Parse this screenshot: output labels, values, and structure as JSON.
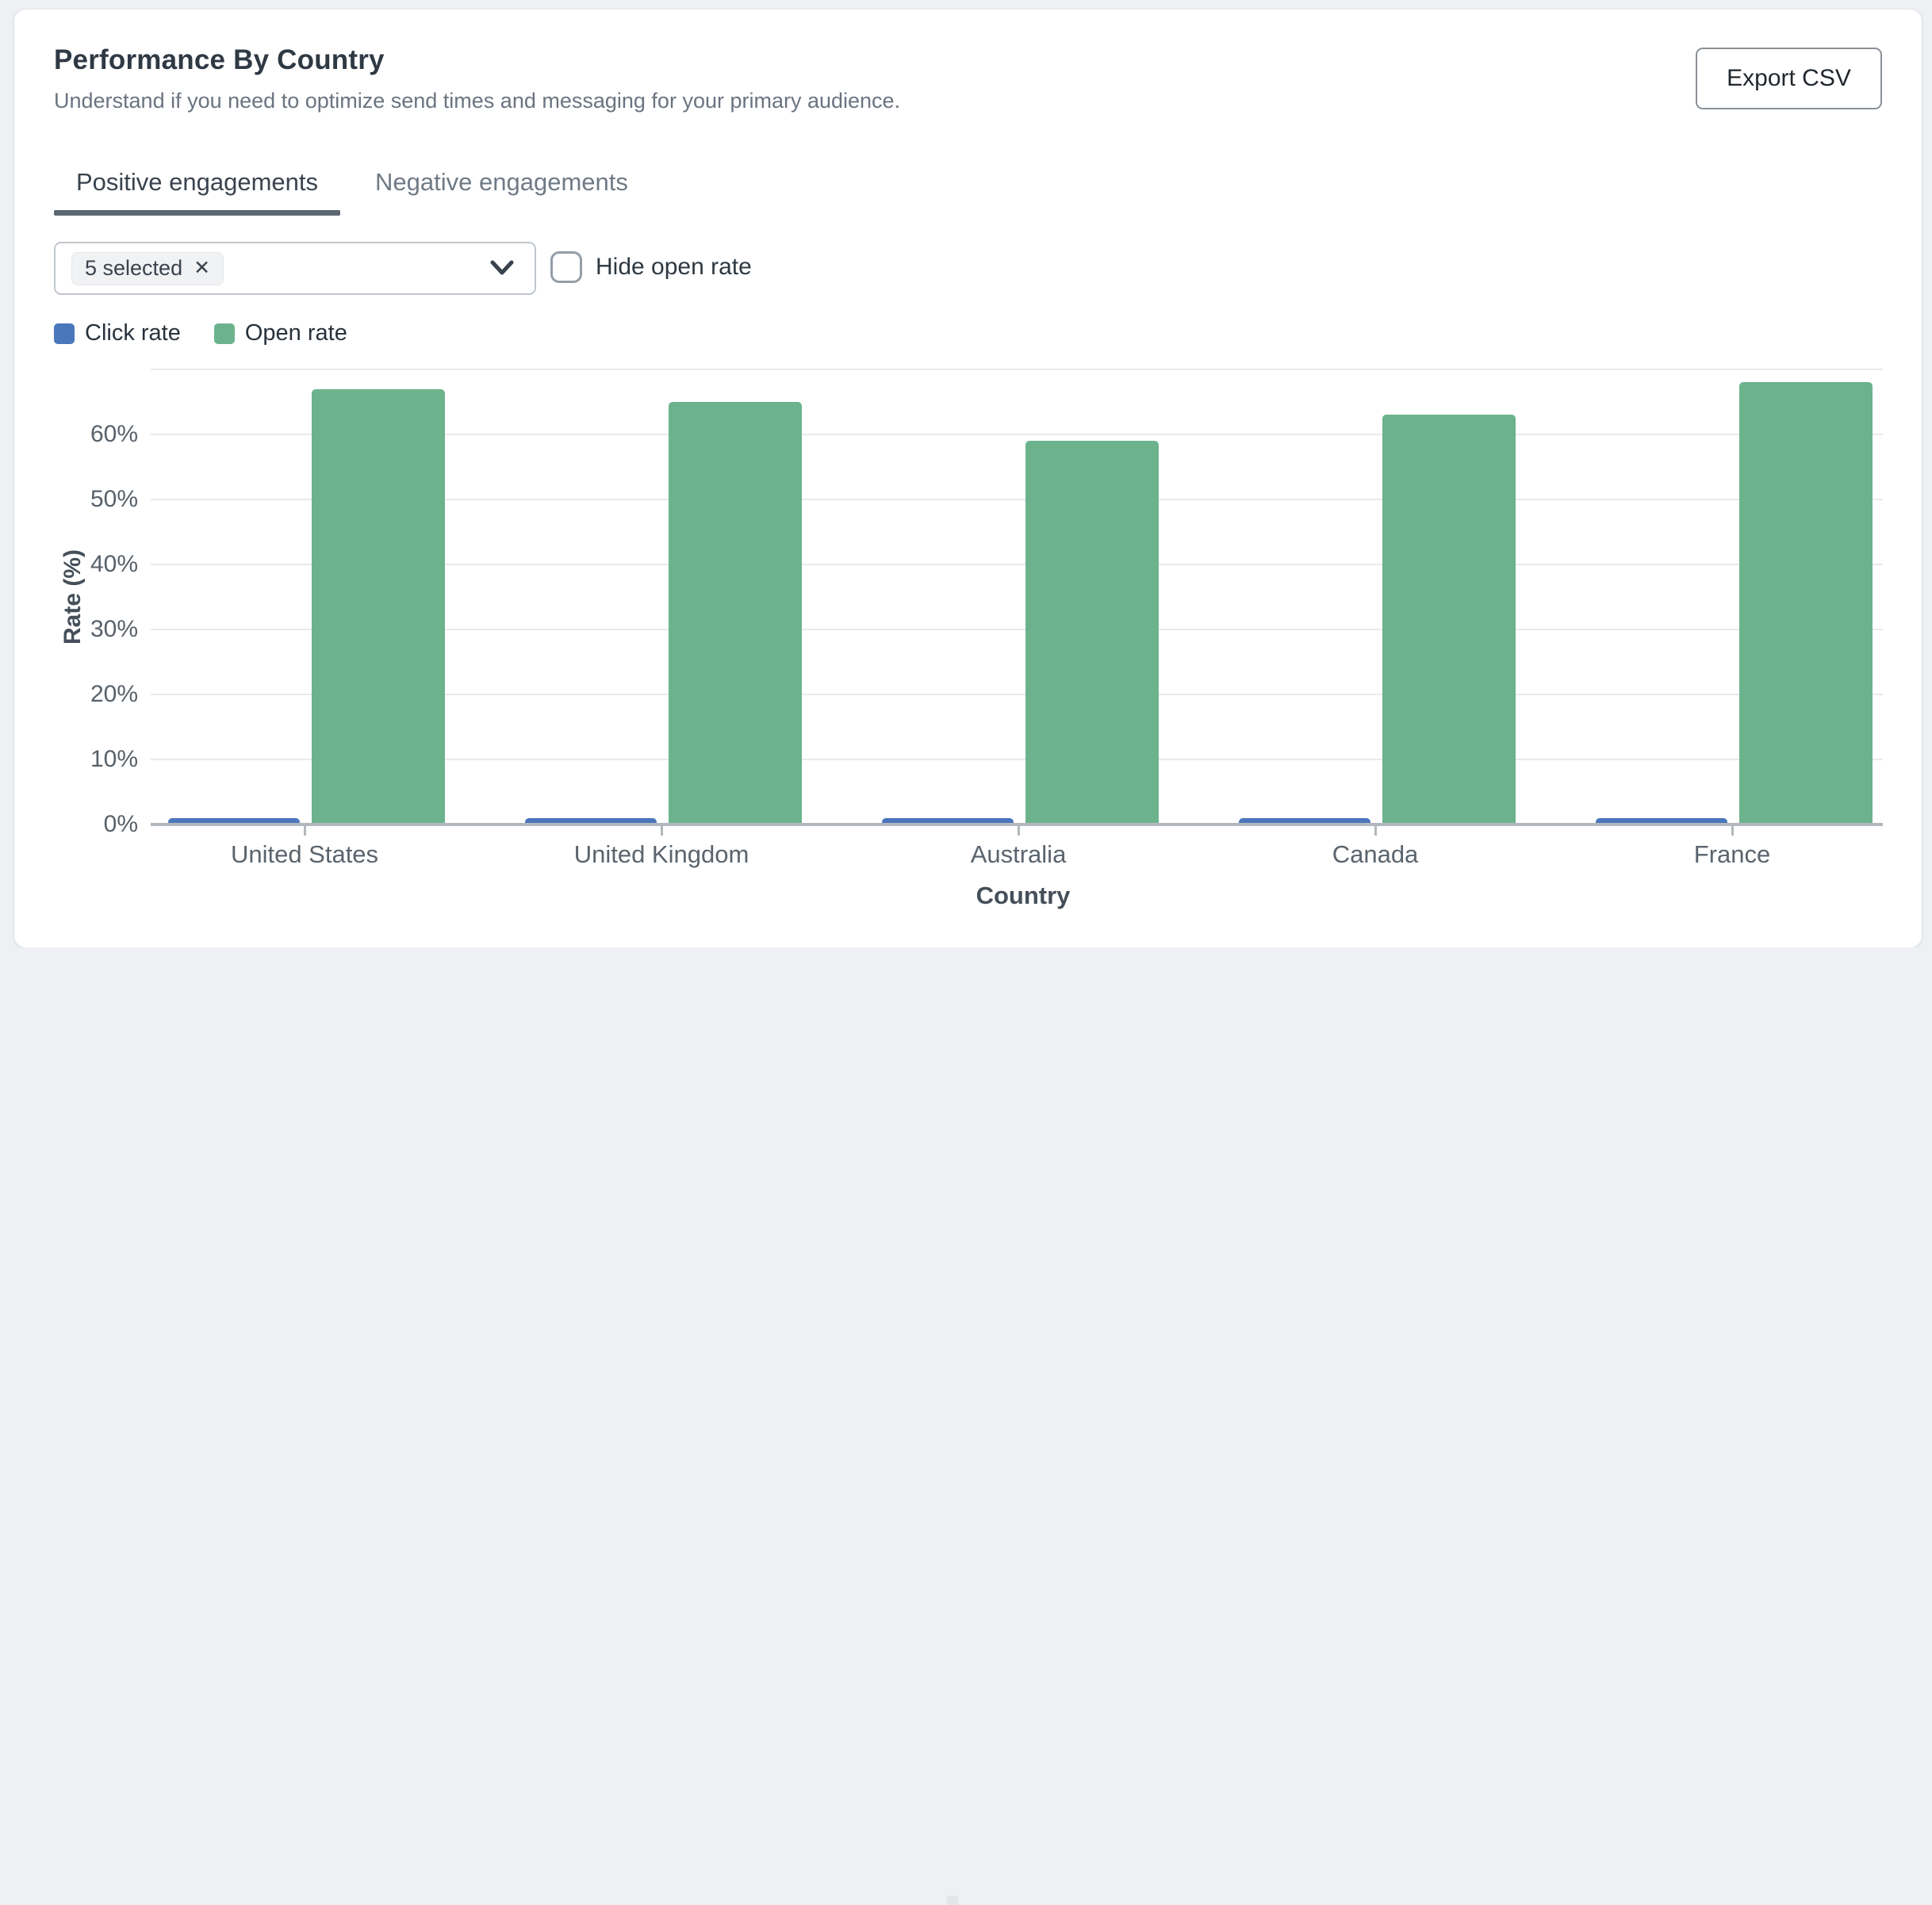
{
  "card": {
    "title": "Performance By Country",
    "subtitle": "Understand if you need to optimize send times and messaging for your primary audience.",
    "export_button_label": "Export CSV",
    "tabs": [
      {
        "label": "Positive engagements",
        "active": true
      },
      {
        "label": "Negative engagements",
        "active": false
      }
    ],
    "country_filter": {
      "chip_label": "5 selected",
      "chip_remove_icon": "✕",
      "chevron_icon": "chevron-down"
    },
    "hide_open_rate_checkbox": {
      "label": "Hide open rate",
      "checked": false
    }
  },
  "colors": {
    "click_rate": "#4a76bb",
    "open_rate": "#6cb38d",
    "tab_underline": "#5d6771",
    "gridline": "#e7e9ec",
    "axis_line": "#b3b8be"
  },
  "chart_data": {
    "type": "bar",
    "categories": [
      "United States",
      "United Kingdom",
      "Australia",
      "Canada",
      "France"
    ],
    "series": [
      {
        "name": "Click rate",
        "color": "#4a76bb",
        "values": [
          1,
          1,
          1,
          1,
          1
        ]
      },
      {
        "name": "Open rate",
        "color": "#6cb38d",
        "values": [
          67,
          65,
          59,
          63,
          68
        ]
      }
    ],
    "xlabel": "Country",
    "ylabel": "Rate (%)",
    "ylim": [
      0,
      70
    ],
    "yticks": [
      0,
      10,
      20,
      30,
      40,
      50,
      60
    ],
    "ytick_suffix": "%",
    "grid": true,
    "legend_position": "top-left"
  }
}
